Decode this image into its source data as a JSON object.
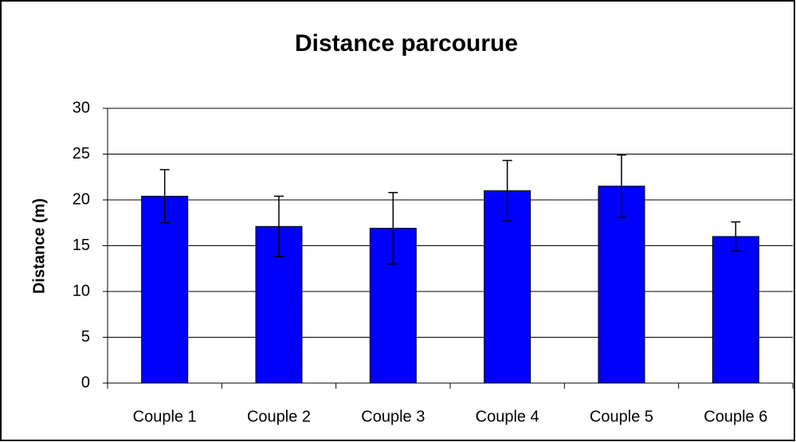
{
  "chart_data": {
    "type": "bar",
    "title": "Distance parcourue",
    "y_label": "Distance (m)",
    "categories": [
      "Couple 1",
      "Couple 2",
      "Couple 3",
      "Couple 4",
      "Couple 5",
      "Couple 6"
    ],
    "values": [
      20.4,
      17.1,
      16.9,
      21.0,
      21.5,
      16.0
    ],
    "errors": [
      2.9,
      3.3,
      3.9,
      3.3,
      3.4,
      1.6
    ],
    "color": "#0000ff",
    "ylim": [
      0,
      30
    ],
    "yticks": [
      0,
      5,
      10,
      15,
      20,
      25,
      30
    ],
    "grid": true
  }
}
